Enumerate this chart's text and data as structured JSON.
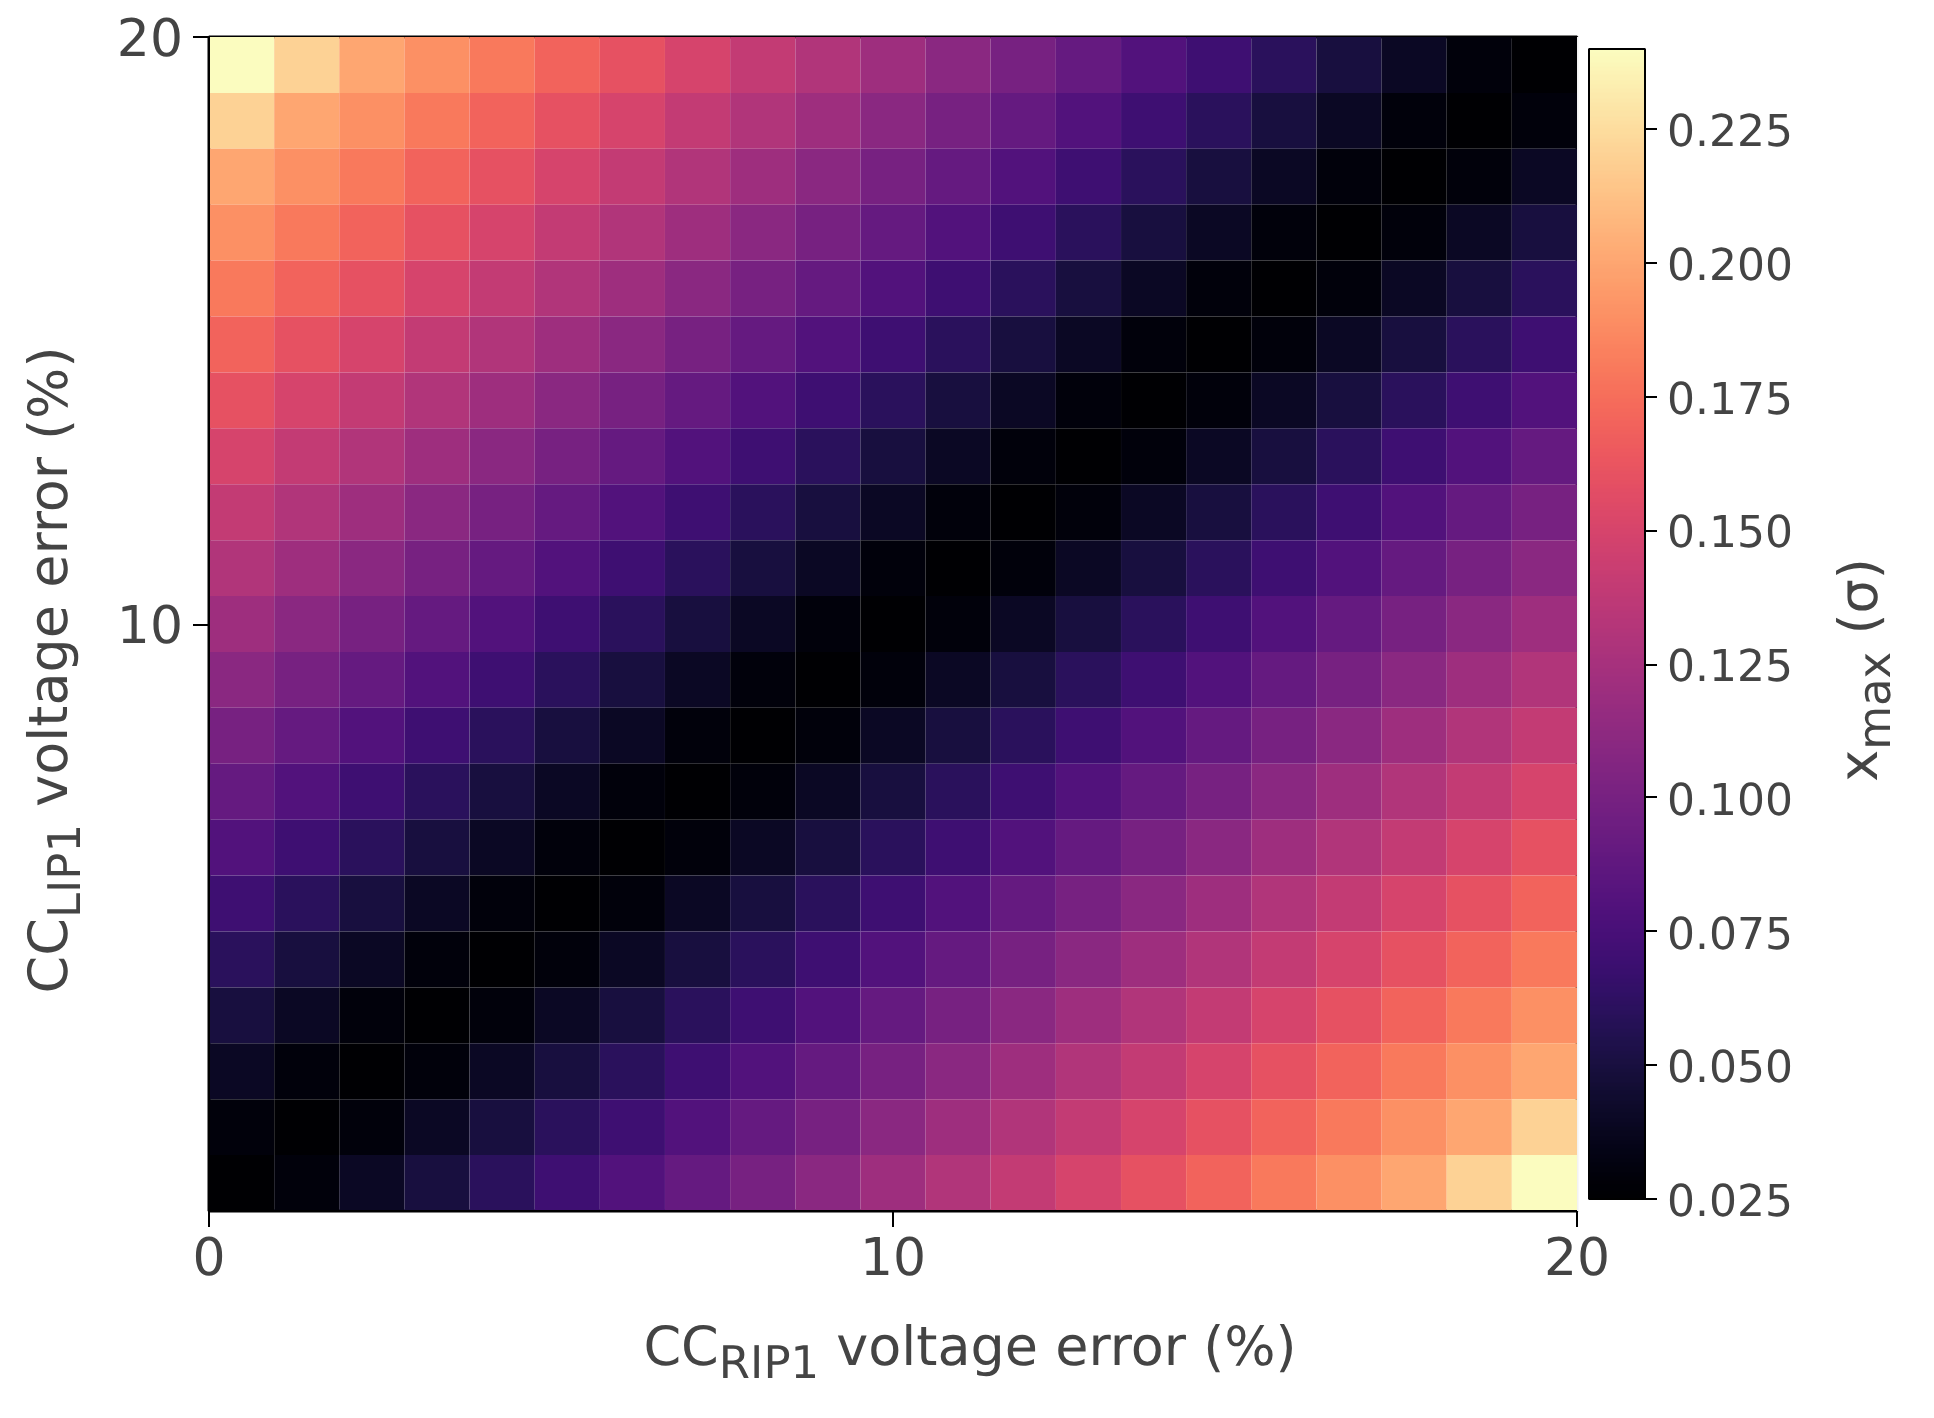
{
  "chart_data": {
    "type": "heatmap",
    "xlabel": "CC$_{RIP1}$ voltage error (%)",
    "ylabel": "CC$_{LIP1}$ voltage error (%)",
    "clabel": "x$_{max}$ (σ)",
    "xlim": [
      0,
      20
    ],
    "xticks": [
      0,
      10,
      20
    ],
    "x": [
      0.476,
      1.429,
      2.381,
      3.333,
      4.286,
      5.238,
      6.19,
      7.143,
      8.095,
      9.048,
      10,
      10.952,
      11.905,
      12.857,
      13.81,
      14.762,
      15.714,
      16.667,
      17.619,
      18.571,
      19.524
    ],
    "ylim": [
      0,
      20
    ],
    "yticks": [
      10,
      20
    ],
    "clim": [
      0.025,
      0.24
    ],
    "cticks": [
      {
        "value": 0.025,
        "label": "0.025"
      },
      {
        "value": 0.05,
        "label": "0.050"
      },
      {
        "value": 0.075,
        "label": "0.075"
      },
      {
        "value": 0.1,
        "label": "0.100"
      },
      {
        "value": 0.125,
        "label": "0.125"
      },
      {
        "value": 0.15,
        "label": "0.150"
      },
      {
        "value": 0.175,
        "label": "0.175"
      },
      {
        "value": 0.2,
        "label": "0.200"
      },
      {
        "value": 0.225,
        "label": "0.225"
      }
    ],
    "cells": [
      [
        0.24,
        0.22,
        0.2,
        0.19,
        0.18,
        0.17,
        0.16,
        0.15,
        0.14,
        0.13,
        0.12,
        0.11,
        0.1,
        0.09,
        0.08,
        0.07,
        0.06,
        0.05,
        0.04,
        0.03,
        0.025
      ],
      [
        0.22,
        0.2,
        0.19,
        0.18,
        0.17,
        0.16,
        0.15,
        0.14,
        0.13,
        0.12,
        0.11,
        0.1,
        0.09,
        0.08,
        0.07,
        0.06,
        0.05,
        0.04,
        0.03,
        0.025,
        0.03
      ],
      [
        0.2,
        0.19,
        0.18,
        0.17,
        0.16,
        0.15,
        0.14,
        0.13,
        0.12,
        0.11,
        0.1,
        0.09,
        0.08,
        0.07,
        0.06,
        0.05,
        0.04,
        0.03,
        0.025,
        0.03,
        0.04
      ],
      [
        0.19,
        0.18,
        0.17,
        0.16,
        0.15,
        0.14,
        0.13,
        0.12,
        0.11,
        0.1,
        0.09,
        0.08,
        0.07,
        0.06,
        0.05,
        0.04,
        0.03,
        0.025,
        0.03,
        0.04,
        0.05
      ],
      [
        0.18,
        0.17,
        0.16,
        0.15,
        0.14,
        0.13,
        0.12,
        0.11,
        0.1,
        0.09,
        0.08,
        0.07,
        0.06,
        0.05,
        0.04,
        0.03,
        0.025,
        0.03,
        0.04,
        0.05,
        0.06
      ],
      [
        0.17,
        0.16,
        0.15,
        0.14,
        0.13,
        0.12,
        0.11,
        0.1,
        0.09,
        0.08,
        0.07,
        0.06,
        0.05,
        0.04,
        0.03,
        0.025,
        0.03,
        0.04,
        0.05,
        0.06,
        0.07
      ],
      [
        0.16,
        0.15,
        0.14,
        0.13,
        0.12,
        0.11,
        0.1,
        0.09,
        0.08,
        0.07,
        0.06,
        0.05,
        0.04,
        0.03,
        0.025,
        0.03,
        0.04,
        0.05,
        0.06,
        0.07,
        0.08
      ],
      [
        0.15,
        0.14,
        0.13,
        0.12,
        0.11,
        0.1,
        0.09,
        0.08,
        0.07,
        0.06,
        0.05,
        0.04,
        0.03,
        0.025,
        0.03,
        0.04,
        0.05,
        0.06,
        0.07,
        0.08,
        0.09
      ],
      [
        0.14,
        0.13,
        0.12,
        0.11,
        0.1,
        0.09,
        0.08,
        0.07,
        0.06,
        0.05,
        0.04,
        0.03,
        0.025,
        0.03,
        0.04,
        0.05,
        0.06,
        0.07,
        0.08,
        0.09,
        0.1
      ],
      [
        0.13,
        0.12,
        0.11,
        0.1,
        0.09,
        0.08,
        0.07,
        0.06,
        0.05,
        0.04,
        0.03,
        0.025,
        0.03,
        0.04,
        0.05,
        0.06,
        0.07,
        0.08,
        0.09,
        0.1,
        0.11
      ],
      [
        0.12,
        0.11,
        0.1,
        0.09,
        0.08,
        0.07,
        0.06,
        0.05,
        0.04,
        0.03,
        0.025,
        0.03,
        0.04,
        0.05,
        0.06,
        0.07,
        0.08,
        0.09,
        0.1,
        0.11,
        0.12
      ],
      [
        0.11,
        0.1,
        0.09,
        0.08,
        0.07,
        0.06,
        0.05,
        0.04,
        0.03,
        0.025,
        0.03,
        0.04,
        0.05,
        0.06,
        0.07,
        0.08,
        0.09,
        0.1,
        0.11,
        0.12,
        0.13
      ],
      [
        0.1,
        0.09,
        0.08,
        0.07,
        0.06,
        0.05,
        0.04,
        0.03,
        0.025,
        0.03,
        0.04,
        0.05,
        0.06,
        0.07,
        0.08,
        0.09,
        0.1,
        0.11,
        0.12,
        0.13,
        0.14
      ],
      [
        0.09,
        0.08,
        0.07,
        0.06,
        0.05,
        0.04,
        0.03,
        0.025,
        0.03,
        0.04,
        0.05,
        0.06,
        0.07,
        0.08,
        0.09,
        0.1,
        0.11,
        0.12,
        0.13,
        0.14,
        0.15
      ],
      [
        0.08,
        0.07,
        0.06,
        0.05,
        0.04,
        0.03,
        0.025,
        0.03,
        0.04,
        0.05,
        0.06,
        0.07,
        0.08,
        0.09,
        0.1,
        0.11,
        0.12,
        0.13,
        0.14,
        0.15,
        0.16
      ],
      [
        0.07,
        0.06,
        0.05,
        0.04,
        0.03,
        0.025,
        0.03,
        0.04,
        0.05,
        0.06,
        0.07,
        0.08,
        0.09,
        0.1,
        0.11,
        0.12,
        0.13,
        0.14,
        0.15,
        0.16,
        0.17
      ],
      [
        0.06,
        0.05,
        0.04,
        0.03,
        0.025,
        0.03,
        0.04,
        0.05,
        0.06,
        0.07,
        0.08,
        0.09,
        0.1,
        0.11,
        0.12,
        0.13,
        0.14,
        0.15,
        0.16,
        0.17,
        0.18
      ],
      [
        0.05,
        0.04,
        0.03,
        0.025,
        0.03,
        0.04,
        0.05,
        0.06,
        0.07,
        0.08,
        0.09,
        0.1,
        0.11,
        0.12,
        0.13,
        0.14,
        0.15,
        0.16,
        0.17,
        0.18,
        0.19
      ],
      [
        0.04,
        0.03,
        0.025,
        0.03,
        0.04,
        0.05,
        0.06,
        0.07,
        0.08,
        0.09,
        0.1,
        0.11,
        0.12,
        0.13,
        0.14,
        0.15,
        0.16,
        0.17,
        0.18,
        0.19,
        0.2
      ],
      [
        0.03,
        0.025,
        0.03,
        0.04,
        0.05,
        0.06,
        0.07,
        0.08,
        0.09,
        0.1,
        0.11,
        0.12,
        0.13,
        0.14,
        0.15,
        0.16,
        0.17,
        0.18,
        0.19,
        0.2,
        0.22
      ],
      [
        0.025,
        0.03,
        0.04,
        0.05,
        0.06,
        0.07,
        0.08,
        0.09,
        0.1,
        0.11,
        0.12,
        0.13,
        0.14,
        0.15,
        0.16,
        0.17,
        0.18,
        0.19,
        0.2,
        0.22,
        0.24
      ]
    ]
  }
}
